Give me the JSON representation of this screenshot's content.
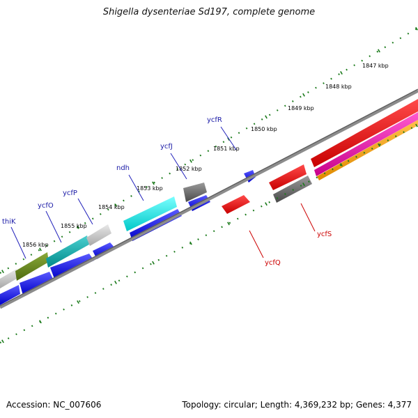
{
  "title": "Shigella dysenteriae Sd197, complete genome",
  "accession_text": "Accession: NC_007606",
  "summary_text": "Topology: circular; Length: 4,369,232 bp; Genes: 4,377",
  "colors": {
    "forward_cds": "#0000ee",
    "reverse_cds": "#ee0000",
    "gene_label_forward": "#1a1aa6",
    "gene_label_reverse": "#cc0000",
    "tick_ring": "#1a7a1a",
    "backbone": "#7a7a7a"
  },
  "ruler": {
    "unit": "kbp",
    "ticks": [
      "1847 kbp",
      "1848 kbp",
      "1849 kbp",
      "1850 kbp",
      "1851 kbp",
      "1852 kbp",
      "1853 kbp",
      "1854 kbp",
      "1855 kbp",
      "1856 kbp"
    ]
  },
  "gene_labels": [
    {
      "name": "thiK",
      "strand": "forward"
    },
    {
      "name": "ycfO",
      "strand": "forward"
    },
    {
      "name": "ycfP",
      "strand": "forward"
    },
    {
      "name": "ndh",
      "strand": "forward"
    },
    {
      "name": "ycfJ",
      "strand": "forward"
    },
    {
      "name": "ycfR",
      "strand": "forward"
    },
    {
      "name": "ycfQ",
      "strand": "reverse"
    },
    {
      "name": "ycfS",
      "strand": "reverse"
    }
  ]
}
